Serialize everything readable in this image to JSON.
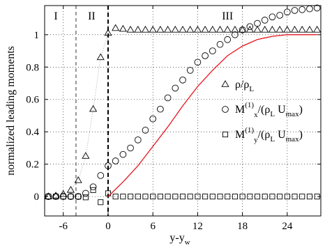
{
  "chart_data": {
    "type": "scatter",
    "xlabel": "y-y",
    "xlabel_sub": "w",
    "ylabel": "normalized leading moments",
    "xlim": [
      -8.5,
      28.5
    ],
    "ylim": [
      -0.12,
      1.18
    ],
    "xticks": [
      -6,
      0,
      6,
      12,
      18,
      24
    ],
    "yticks": [
      0,
      0.2,
      0.4,
      0.6,
      0.8,
      1
    ],
    "grid": true,
    "vlines": [
      {
        "name": "boundary-1",
        "x": -4.3,
        "style": "thin-dashed"
      },
      {
        "name": "wall",
        "x": 0,
        "style": "thick-dashed"
      }
    ],
    "regions": [
      {
        "label": "I",
        "x": -7.0
      },
      {
        "label": "II",
        "x": -2.2
      },
      {
        "label": "III",
        "x": 16.0
      }
    ],
    "legend": {
      "position": "right",
      "entries": [
        {
          "marker": "triangle",
          "main": "ρ/ρ",
          "sub": "L",
          "tail": ""
        },
        {
          "marker": "circle",
          "main": "M",
          "sup": "(1)",
          "sub": "x",
          "tail": "/(ρ",
          "sub2": "L",
          "tail2": " U",
          "sub3": "max",
          "tail3": ")"
        },
        {
          "marker": "square",
          "main": "M",
          "sup": "(1)",
          "sub": "y",
          "tail": "/(ρ",
          "sub2": "L",
          "tail2": " U",
          "sub3": "max",
          "tail3": ")"
        }
      ]
    },
    "series": [
      {
        "marker": "triangle",
        "x": [
          -8,
          -7,
          -6,
          -5,
          -4,
          -3,
          -2,
          -1,
          0,
          1,
          2,
          3,
          4,
          5,
          6,
          7,
          8,
          9,
          10,
          11,
          12,
          13,
          14,
          15,
          16,
          17,
          18,
          19,
          20,
          21,
          22,
          23,
          24,
          25,
          26,
          27,
          28
        ],
        "y": [
          0.0,
          0.005,
          0.015,
          0.04,
          0.1,
          0.25,
          0.54,
          0.86,
          1.01,
          1.04,
          1.035,
          1.03,
          1.03,
          1.03,
          1.03,
          1.03,
          1.03,
          1.03,
          1.03,
          1.03,
          1.03,
          1.03,
          1.03,
          1.03,
          1.03,
          1.03,
          1.03,
          1.03,
          1.03,
          1.03,
          1.03,
          1.03,
          1.03,
          1.03,
          1.03,
          1.03,
          1.03
        ]
      },
      {
        "marker": "circle",
        "x": [
          -8,
          -7,
          -6,
          -5,
          -4,
          -3,
          -2,
          -1,
          0,
          1,
          2,
          3,
          4,
          5,
          6,
          7,
          8,
          9,
          10,
          11,
          12,
          13,
          14,
          15,
          16,
          17,
          18,
          19,
          20,
          21,
          22,
          23,
          24,
          25,
          26,
          27,
          28
        ],
        "y": [
          0.0,
          0.0,
          0.0,
          0.0,
          0.0,
          0.02,
          0.06,
          0.13,
          0.19,
          0.22,
          0.26,
          0.3,
          0.35,
          0.41,
          0.48,
          0.54,
          0.61,
          0.67,
          0.72,
          0.78,
          0.83,
          0.87,
          0.9,
          0.94,
          0.97,
          1.0,
          1.03,
          1.05,
          1.07,
          1.09,
          1.11,
          1.12,
          1.14,
          1.15,
          1.155,
          1.16,
          1.165
        ]
      },
      {
        "marker": "square",
        "x": [
          -8,
          -7,
          -6,
          -5,
          -4,
          -3,
          -2,
          -1,
          0,
          1,
          2,
          3,
          4,
          5,
          6,
          7,
          8,
          9,
          10,
          11,
          12,
          13,
          14,
          15,
          16,
          17,
          18,
          19,
          20,
          21,
          22,
          23,
          24,
          25,
          26,
          27,
          28
        ],
        "y": [
          0.0,
          0.0,
          0.0,
          0.0,
          0.0,
          -0.005,
          0.04,
          -0.035,
          0.02,
          0.0,
          0.0,
          0.0,
          0.0,
          0.0,
          0.0,
          0.0,
          0.0,
          0.0,
          0.0,
          0.0,
          0.0,
          0.0,
          0.0,
          0.0,
          0.0,
          0.0,
          0.0,
          0.0,
          0.0,
          0.0,
          0.0,
          0.0,
          0.0,
          0.0,
          0.0,
          0.0,
          0.0
        ]
      },
      {
        "marker": "line",
        "color": "#e8141c",
        "x": [
          0,
          2,
          4,
          6,
          8,
          10,
          12,
          14,
          16,
          18,
          20,
          22,
          24,
          26,
          28
        ],
        "y": [
          0.0,
          0.09,
          0.19,
          0.31,
          0.43,
          0.56,
          0.68,
          0.78,
          0.87,
          0.93,
          0.97,
          0.99,
          1.0,
          1.0,
          1.0
        ]
      }
    ]
  }
}
